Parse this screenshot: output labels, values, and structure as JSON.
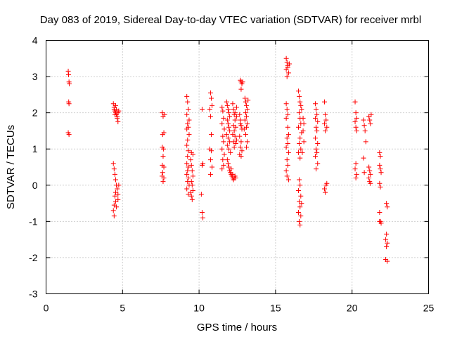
{
  "chart_data": {
    "type": "scatter",
    "title": "Day 083 of 2019, Sidereal Day-to-day VTEC variation (SDTVAR) for receiver mrbl",
    "xlabel": "GPS time / hours",
    "ylabel": "SDTVAR / TECUs",
    "xlim": [
      0,
      25
    ],
    "ylim": [
      -3,
      4
    ],
    "xticks": [
      0,
      5,
      10,
      15,
      20,
      25
    ],
    "yticks": [
      -3,
      -2,
      -1,
      0,
      1,
      2,
      3,
      4
    ],
    "grid": true,
    "marker": "+",
    "color": "#ff0000",
    "series": [
      {
        "name": "SDTVAR",
        "points": [
          [
            1.45,
            3.15
          ],
          [
            1.47,
            3.05
          ],
          [
            1.5,
            2.85
          ],
          [
            1.52,
            2.8
          ],
          [
            1.48,
            2.3
          ],
          [
            1.5,
            2.25
          ],
          [
            1.45,
            1.45
          ],
          [
            1.5,
            1.4
          ],
          [
            4.4,
            2.25
          ],
          [
            4.45,
            2.15
          ],
          [
            4.5,
            2.05
          ],
          [
            4.55,
            2.0
          ],
          [
            4.6,
            1.95
          ],
          [
            4.65,
            1.85
          ],
          [
            4.7,
            1.75
          ],
          [
            4.45,
            2.1
          ],
          [
            4.55,
            2.2
          ],
          [
            4.6,
            2.1
          ],
          [
            4.7,
            2.0
          ],
          [
            4.65,
            1.9
          ],
          [
            4.5,
            1.95
          ],
          [
            4.75,
            2.05
          ],
          [
            4.4,
            0.6
          ],
          [
            4.45,
            0.45
          ],
          [
            4.5,
            0.3
          ],
          [
            4.55,
            0.15
          ],
          [
            4.6,
            0.0
          ],
          [
            4.65,
            -0.1
          ],
          [
            4.7,
            -0.25
          ],
          [
            4.5,
            -0.3
          ],
          [
            4.55,
            -0.45
          ],
          [
            4.45,
            -0.55
          ],
          [
            4.4,
            -0.7
          ],
          [
            4.45,
            -0.85
          ],
          [
            4.6,
            -0.6
          ],
          [
            4.7,
            -0.4
          ],
          [
            4.75,
            0.0
          ],
          [
            4.55,
            -0.2
          ],
          [
            7.6,
            2.0
          ],
          [
            7.65,
            1.9
          ],
          [
            7.7,
            1.45
          ],
          [
            7.62,
            1.4
          ],
          [
            7.6,
            1.05
          ],
          [
            7.68,
            1.0
          ],
          [
            7.65,
            0.8
          ],
          [
            7.6,
            0.55
          ],
          [
            7.7,
            0.5
          ],
          [
            7.62,
            0.35
          ],
          [
            7.7,
            0.2
          ],
          [
            7.65,
            0.1
          ],
          [
            7.75,
            1.95
          ],
          [
            7.58,
            0.25
          ],
          [
            9.2,
            2.45
          ],
          [
            9.25,
            2.3
          ],
          [
            9.3,
            2.1
          ],
          [
            9.2,
            1.95
          ],
          [
            9.35,
            1.8
          ],
          [
            9.25,
            1.7
          ],
          [
            9.3,
            1.6
          ],
          [
            9.2,
            1.55
          ],
          [
            9.35,
            1.4
          ],
          [
            9.25,
            1.25
          ],
          [
            9.2,
            1.1
          ],
          [
            9.3,
            0.95
          ],
          [
            9.25,
            0.8
          ],
          [
            9.2,
            0.6
          ],
          [
            9.3,
            0.5
          ],
          [
            9.25,
            0.4
          ],
          [
            9.2,
            0.3
          ],
          [
            9.3,
            0.2
          ],
          [
            9.25,
            0.1
          ],
          [
            9.35,
            0.0
          ],
          [
            9.2,
            -0.1
          ],
          [
            9.3,
            -0.25
          ],
          [
            9.45,
            0.7
          ],
          [
            9.5,
            0.55
          ],
          [
            9.55,
            0.4
          ],
          [
            9.6,
            0.25
          ],
          [
            9.5,
            0.1
          ],
          [
            9.55,
            0.0
          ],
          [
            9.6,
            -0.15
          ],
          [
            9.5,
            -0.3
          ],
          [
            9.55,
            -0.4
          ],
          [
            9.45,
            -0.2
          ],
          [
            9.6,
            0.85
          ],
          [
            9.5,
            0.9
          ],
          [
            10.2,
            2.1
          ],
          [
            10.25,
            0.6
          ],
          [
            10.2,
            0.55
          ],
          [
            10.15,
            -0.25
          ],
          [
            10.2,
            -0.75
          ],
          [
            10.25,
            -0.9
          ],
          [
            10.75,
            2.55
          ],
          [
            10.8,
            2.4
          ],
          [
            10.85,
            2.2
          ],
          [
            10.7,
            2.1
          ],
          [
            10.75,
            1.9
          ],
          [
            10.8,
            1.4
          ],
          [
            10.7,
            1.0
          ],
          [
            10.8,
            0.95
          ],
          [
            10.75,
            0.7
          ],
          [
            10.85,
            0.5
          ],
          [
            10.75,
            0.3
          ],
          [
            11.5,
            2.15
          ],
          [
            11.55,
            2.05
          ],
          [
            11.6,
            1.85
          ],
          [
            11.5,
            1.7
          ],
          [
            11.65,
            1.55
          ],
          [
            11.55,
            1.35
          ],
          [
            11.6,
            1.2
          ],
          [
            11.5,
            1.0
          ],
          [
            11.65,
            0.85
          ],
          [
            11.55,
            0.7
          ],
          [
            11.6,
            0.55
          ],
          [
            11.5,
            0.45
          ],
          [
            11.8,
            2.3
          ],
          [
            11.85,
            2.2
          ],
          [
            11.9,
            2.1
          ],
          [
            11.95,
            2.0
          ],
          [
            12.0,
            1.9
          ],
          [
            11.85,
            1.8
          ],
          [
            11.9,
            1.7
          ],
          [
            11.95,
            1.6
          ],
          [
            12.0,
            1.5
          ],
          [
            11.8,
            1.4
          ],
          [
            11.9,
            1.3
          ],
          [
            12.0,
            1.2
          ],
          [
            11.85,
            1.1
          ],
          [
            11.95,
            1.0
          ],
          [
            12.05,
            0.9
          ],
          [
            11.85,
            0.7
          ],
          [
            11.9,
            0.6
          ],
          [
            11.95,
            0.5
          ],
          [
            12.0,
            0.4
          ],
          [
            12.05,
            0.35
          ],
          [
            12.1,
            0.3
          ],
          [
            12.15,
            0.25
          ],
          [
            12.2,
            0.2
          ],
          [
            12.25,
            0.15
          ],
          [
            12.3,
            0.2
          ],
          [
            12.35,
            0.25
          ],
          [
            12.4,
            0.2
          ],
          [
            12.1,
            0.45
          ],
          [
            12.2,
            0.3
          ],
          [
            12.2,
            2.25
          ],
          [
            12.25,
            2.1
          ],
          [
            12.3,
            1.95
          ],
          [
            12.35,
            1.8
          ],
          [
            12.25,
            1.65
          ],
          [
            12.3,
            1.5
          ],
          [
            12.35,
            1.35
          ],
          [
            12.25,
            1.2
          ],
          [
            12.3,
            1.05
          ],
          [
            12.4,
            1.15
          ],
          [
            12.45,
            1.25
          ],
          [
            12.4,
            1.6
          ],
          [
            12.35,
            2.0
          ],
          [
            12.45,
            2.15
          ],
          [
            12.2,
            1.4
          ],
          [
            12.45,
            1.9
          ],
          [
            12.65,
            1.95
          ],
          [
            12.7,
            1.8
          ],
          [
            12.75,
            1.65
          ],
          [
            12.8,
            1.55
          ],
          [
            12.65,
            1.35
          ],
          [
            12.75,
            1.2
          ],
          [
            12.7,
            1.05
          ],
          [
            12.8,
            0.95
          ],
          [
            12.65,
            0.85
          ],
          [
            12.75,
            0.8
          ],
          [
            12.7,
            1.7
          ],
          [
            12.7,
            2.9
          ],
          [
            12.75,
            2.85
          ],
          [
            12.8,
            2.8
          ],
          [
            12.85,
            2.85
          ],
          [
            12.75,
            2.65
          ],
          [
            13.0,
            2.4
          ],
          [
            13.05,
            2.3
          ],
          [
            13.1,
            2.2
          ],
          [
            13.15,
            2.1
          ],
          [
            13.05,
            2.0
          ],
          [
            13.1,
            1.9
          ],
          [
            13.0,
            1.8
          ],
          [
            13.15,
            1.7
          ],
          [
            13.1,
            1.6
          ],
          [
            13.05,
            1.4
          ],
          [
            13.15,
            1.2
          ],
          [
            13.1,
            1.05
          ],
          [
            13.2,
            2.35
          ],
          [
            12.95,
            1.55
          ],
          [
            15.7,
            3.5
          ],
          [
            15.75,
            3.4
          ],
          [
            15.8,
            3.3
          ],
          [
            15.7,
            3.2
          ],
          [
            15.85,
            3.1
          ],
          [
            15.75,
            3.0
          ],
          [
            15.8,
            3.25
          ],
          [
            15.9,
            3.35
          ],
          [
            15.7,
            2.25
          ],
          [
            15.75,
            2.1
          ],
          [
            15.8,
            1.95
          ],
          [
            15.7,
            1.85
          ],
          [
            15.85,
            1.4
          ],
          [
            15.75,
            1.3
          ],
          [
            15.8,
            1.15
          ],
          [
            15.7,
            1.05
          ],
          [
            15.85,
            0.9
          ],
          [
            15.75,
            0.7
          ],
          [
            15.8,
            0.55
          ],
          [
            15.7,
            0.4
          ],
          [
            15.75,
            0.25
          ],
          [
            15.85,
            0.15
          ],
          [
            15.8,
            1.6
          ],
          [
            16.5,
            2.6
          ],
          [
            16.55,
            2.45
          ],
          [
            16.6,
            2.3
          ],
          [
            16.65,
            2.2
          ],
          [
            16.7,
            2.1
          ],
          [
            16.55,
            2.0
          ],
          [
            16.6,
            1.85
          ],
          [
            16.65,
            1.7
          ],
          [
            16.5,
            1.6
          ],
          [
            16.7,
            1.45
          ],
          [
            16.6,
            1.3
          ],
          [
            16.55,
            1.15
          ],
          [
            16.65,
            1.0
          ],
          [
            16.5,
            0.9
          ],
          [
            16.6,
            0.75
          ],
          [
            16.55,
            0.15
          ],
          [
            16.6,
            0.0
          ],
          [
            16.5,
            -0.15
          ],
          [
            16.65,
            -0.3
          ],
          [
            16.55,
            -0.45
          ],
          [
            16.6,
            -0.6
          ],
          [
            16.5,
            -0.75
          ],
          [
            16.65,
            -0.85
          ],
          [
            16.55,
            -1.0
          ],
          [
            16.6,
            -1.1
          ],
          [
            16.7,
            -0.5
          ],
          [
            16.8,
            1.85
          ],
          [
            16.85,
            1.7
          ],
          [
            16.8,
            1.5
          ],
          [
            16.85,
            1.2
          ],
          [
            16.75,
            0.9
          ],
          [
            17.6,
            2.25
          ],
          [
            17.65,
            2.1
          ],
          [
            17.7,
            1.95
          ],
          [
            17.6,
            1.85
          ],
          [
            17.75,
            1.75
          ],
          [
            17.65,
            1.6
          ],
          [
            17.7,
            1.5
          ],
          [
            17.6,
            1.3
          ],
          [
            17.75,
            1.15
          ],
          [
            17.65,
            1.0
          ],
          [
            17.7,
            0.9
          ],
          [
            17.6,
            0.8
          ],
          [
            17.75,
            0.6
          ],
          [
            17.65,
            0.45
          ],
          [
            18.2,
            2.3
          ],
          [
            18.25,
            1.95
          ],
          [
            18.3,
            1.8
          ],
          [
            18.2,
            1.7
          ],
          [
            18.35,
            1.6
          ],
          [
            18.25,
            1.5
          ],
          [
            18.3,
            0.0
          ],
          [
            18.2,
            -0.1
          ],
          [
            18.25,
            -0.2
          ],
          [
            18.35,
            0.05
          ],
          [
            20.2,
            2.3
          ],
          [
            20.25,
            2.0
          ],
          [
            20.3,
            1.85
          ],
          [
            20.2,
            1.75
          ],
          [
            20.25,
            1.6
          ],
          [
            20.3,
            1.5
          ],
          [
            20.25,
            0.6
          ],
          [
            20.2,
            0.45
          ],
          [
            20.3,
            0.3
          ],
          [
            20.25,
            0.2
          ],
          [
            20.75,
            1.8
          ],
          [
            20.8,
            1.65
          ],
          [
            20.85,
            1.5
          ],
          [
            20.9,
            1.2
          ],
          [
            20.75,
            0.75
          ],
          [
            20.8,
            0.35
          ],
          [
            21.1,
            1.9
          ],
          [
            21.15,
            1.8
          ],
          [
            21.2,
            1.7
          ],
          [
            21.1,
            0.5
          ],
          [
            21.15,
            0.4
          ],
          [
            21.2,
            0.3
          ],
          [
            21.1,
            0.2
          ],
          [
            21.15,
            0.1
          ],
          [
            21.2,
            0.05
          ],
          [
            21.25,
            1.95
          ],
          [
            21.8,
            0.9
          ],
          [
            21.85,
            0.8
          ],
          [
            21.8,
            0.55
          ],
          [
            21.85,
            0.45
          ],
          [
            21.9,
            0.35
          ],
          [
            21.8,
            0.05
          ],
          [
            21.85,
            -0.05
          ],
          [
            21.8,
            -0.75
          ],
          [
            21.85,
            -1.0
          ],
          [
            21.9,
            -1.05
          ],
          [
            21.8,
            -1.0
          ],
          [
            22.25,
            -0.5
          ],
          [
            22.3,
            -0.6
          ],
          [
            22.25,
            -1.35
          ],
          [
            22.2,
            -1.5
          ],
          [
            22.3,
            -1.6
          ],
          [
            22.25,
            -1.7
          ],
          [
            22.2,
            -2.05
          ],
          [
            22.3,
            -2.1
          ]
        ]
      }
    ]
  }
}
